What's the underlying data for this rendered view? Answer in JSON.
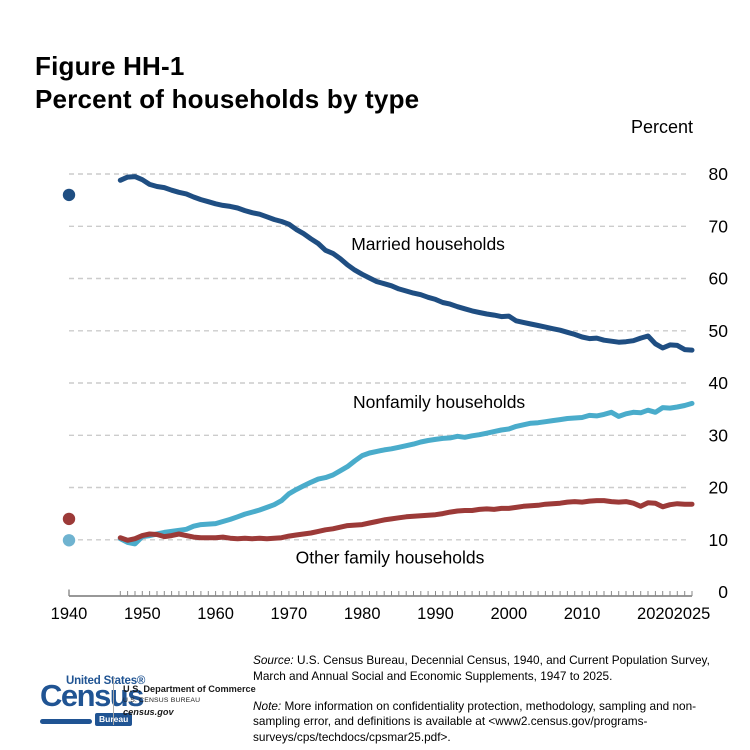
{
  "page": {
    "title_line1": "Figure HH-1",
    "title_line2": "Percent of households by type"
  },
  "chart_data": {
    "type": "line",
    "title": "Percent of households by type",
    "unit_label": "Percent",
    "ylim": [
      0,
      80
    ],
    "y_ticks": [
      0,
      10,
      20,
      30,
      40,
      50,
      60,
      70,
      80
    ],
    "grid": "dashed horizontal",
    "x_range": [
      1940,
      2025
    ],
    "x_ticks_labeled": [
      1940,
      1950,
      1960,
      1970,
      1980,
      1990,
      2000,
      2010,
      2020,
      2025
    ],
    "x_minor_ticks": "every year 1947-2025",
    "line_start_year": 1947,
    "note": "isolated dots plotted at 1940; continuous annual lines 1947-2025",
    "style": {
      "grid_color": "#cccccc",
      "axis_color": "#8a8a8a",
      "text_color": "#000000"
    },
    "series": [
      {
        "name": "Married households",
        "color": "#1F4E82",
        "dot_color": "#1F4E82",
        "value_1940": 76.0,
        "label_at": [
          1989.0,
          65.5
        ],
        "values": [
          78.8,
          79.4,
          79.5,
          78.9,
          78.0,
          77.6,
          77.4,
          76.9,
          76.5,
          76.2,
          75.6,
          75.1,
          74.7,
          74.3,
          74.0,
          73.8,
          73.5,
          73.0,
          72.6,
          72.3,
          71.8,
          71.3,
          70.9,
          70.4,
          69.4,
          68.6,
          67.6,
          66.7,
          65.4,
          64.8,
          63.8,
          62.6,
          61.6,
          60.8,
          60.1,
          59.4,
          59.0,
          58.6,
          58.0,
          57.6,
          57.2,
          56.9,
          56.4,
          56.0,
          55.4,
          55.1,
          54.6,
          54.2,
          53.8,
          53.5,
          53.2,
          53.0,
          52.7,
          52.8,
          51.9,
          51.6,
          51.3,
          51.0,
          50.7,
          50.4,
          50.1,
          49.7,
          49.3,
          48.8,
          48.5,
          48.6,
          48.2,
          48.0,
          47.8,
          47.9,
          48.1,
          48.6,
          49.0,
          47.5,
          46.7,
          47.3,
          47.2,
          46.4,
          46.3
        ]
      },
      {
        "name": "Nonfamily households",
        "color": "#4AACCB",
        "dot_color": "#6FB3D0",
        "value_1940": 9.9,
        "label_at": [
          1990.5,
          35.2
        ],
        "values": [
          10.2,
          9.5,
          9.2,
          10.6,
          10.8,
          11.1,
          11.4,
          11.6,
          11.8,
          12.0,
          12.6,
          12.9,
          13.0,
          13.1,
          13.5,
          13.9,
          14.4,
          14.9,
          15.3,
          15.7,
          16.2,
          16.7,
          17.5,
          18.8,
          19.6,
          20.3,
          21.0,
          21.6,
          21.9,
          22.4,
          23.2,
          24.0,
          25.1,
          26.1,
          26.6,
          26.9,
          27.2,
          27.4,
          27.7,
          28.0,
          28.3,
          28.7,
          29.0,
          29.2,
          29.4,
          29.5,
          29.8,
          29.6,
          29.9,
          30.1,
          30.4,
          30.7,
          31.0,
          31.2,
          31.7,
          32.0,
          32.3,
          32.4,
          32.6,
          32.8,
          33.0,
          33.2,
          33.3,
          33.4,
          33.8,
          33.7,
          34.0,
          34.4,
          33.6,
          34.1,
          34.4,
          34.3,
          34.8,
          34.4,
          35.3,
          35.2,
          35.4,
          35.7,
          36.1
        ]
      },
      {
        "name": "Other family households",
        "color": "#9C3A38",
        "dot_color": "#9C3A38",
        "value_1940": 14.0,
        "label_at": [
          1983.8,
          5.5
        ],
        "values": [
          10.4,
          9.9,
          10.2,
          10.8,
          11.1,
          11.0,
          10.6,
          10.8,
          11.1,
          10.8,
          10.5,
          10.4,
          10.4,
          10.4,
          10.5,
          10.3,
          10.2,
          10.3,
          10.2,
          10.3,
          10.2,
          10.3,
          10.4,
          10.7,
          10.9,
          11.1,
          11.3,
          11.6,
          11.9,
          12.1,
          12.4,
          12.7,
          12.8,
          12.9,
          13.2,
          13.5,
          13.8,
          14.0,
          14.2,
          14.4,
          14.5,
          14.6,
          14.7,
          14.8,
          15.0,
          15.3,
          15.5,
          15.6,
          15.6,
          15.8,
          15.9,
          15.8,
          16.0,
          16.0,
          16.2,
          16.4,
          16.5,
          16.6,
          16.8,
          16.9,
          17.0,
          17.2,
          17.3,
          17.2,
          17.4,
          17.5,
          17.5,
          17.3,
          17.2,
          17.3,
          17.0,
          16.4,
          17.1,
          17.0,
          16.3,
          16.7,
          16.9,
          16.8,
          16.8
        ]
      }
    ]
  },
  "footer": {
    "source": {
      "label": "Source:",
      "line1": "U.S. Census Bureau, Decennial Census, 1940, and Current Population Survey,",
      "line2": "March and Annual Social and Economic Supplements, 1947 to 2025."
    },
    "note": {
      "label": "Note:",
      "line1": "More information on confidentiality protection, methodology, sampling and non-",
      "line2": "sampling error, and definitions is available at <www2.census.gov/programs-",
      "line3": "surveys/cps/techdocs/cpsmar25.pdf>."
    }
  },
  "logo": {
    "united_states": "United States®",
    "census": "Census",
    "bureau": "Bureau",
    "dept_line1": "U.S. Department of Commerce",
    "dept_line2": "U.S. CENSUS BUREAU",
    "dept_line3": "census.gov"
  }
}
